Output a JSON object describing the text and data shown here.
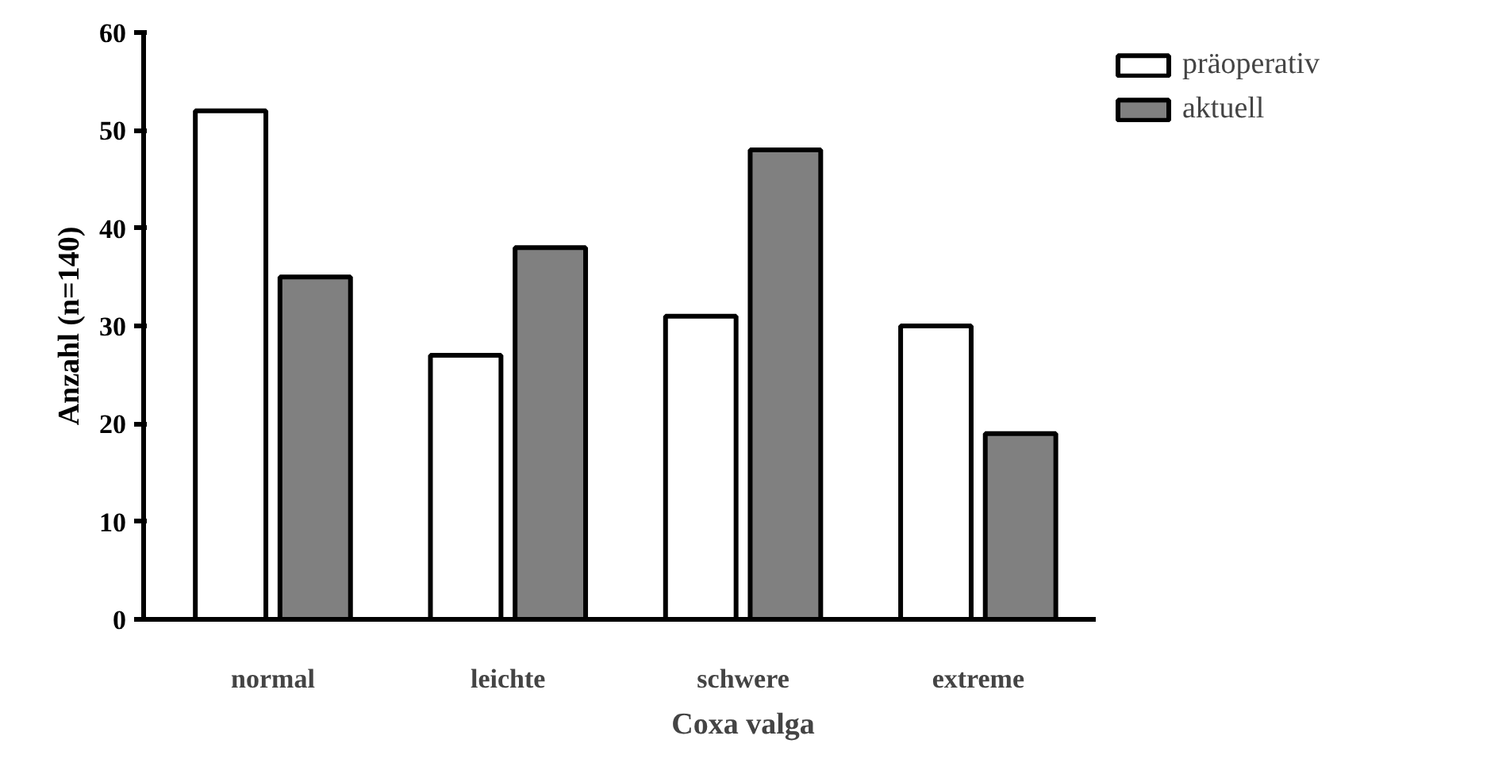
{
  "chart_data": {
    "type": "bar",
    "categories": [
      "normal",
      "leichte",
      "schwere",
      "extreme"
    ],
    "xlabel": "Coxa valga",
    "ylabel": "Anzahl (n=140)",
    "ylim": [
      0,
      60
    ],
    "yticks": [
      0,
      10,
      20,
      30,
      40,
      50,
      60
    ],
    "grid": false,
    "legend": "top right",
    "series": [
      {
        "name": "präoperativ",
        "color": "#ffffff",
        "values": [
          52,
          27,
          31,
          30
        ]
      },
      {
        "name": "aktuell",
        "color": "#808080",
        "values": [
          35,
          38,
          48,
          19
        ]
      }
    ]
  }
}
